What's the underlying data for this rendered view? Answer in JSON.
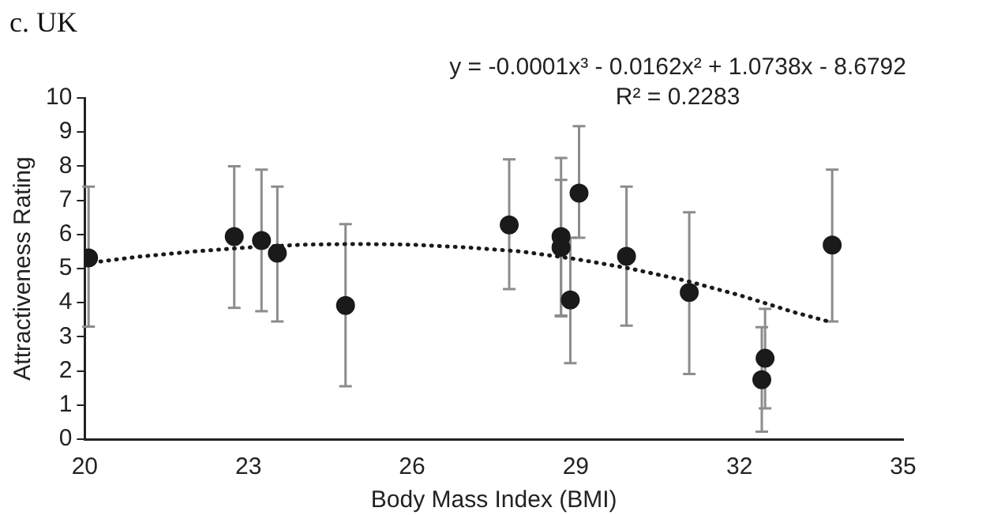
{
  "chart_data": {
    "type": "scatter",
    "title": "c. UK",
    "xlabel": "Body Mass Index (BMI)",
    "ylabel": "Attractiveness Rating",
    "annotations": [
      "y = -0.0001x³ - 0.0162x² + 1.0738x - 8.6792",
      "R² = 0.2283"
    ],
    "xlim": [
      20,
      35
    ],
    "xticks": [
      20,
      23,
      26,
      29,
      32,
      35
    ],
    "ylim": [
      0,
      10
    ],
    "yticks": [
      0,
      1,
      2,
      3,
      4,
      5,
      6,
      7,
      8,
      9,
      10
    ],
    "grid": false,
    "legend": false,
    "series": [
      {
        "type": "scatter",
        "color": "#1a1a1a",
        "marker": "circle",
        "x": [
          20.07,
          22.74,
          23.24,
          23.53,
          24.78,
          27.78,
          28.73,
          28.73,
          29.06,
          28.9,
          29.93,
          31.08,
          32.47,
          32.41,
          33.7
        ],
        "values": [
          5.31,
          5.94,
          5.82,
          5.45,
          3.92,
          6.28,
          5.94,
          5.62,
          7.21,
          4.08,
          5.36,
          4.3,
          2.37,
          1.74,
          5.69
        ],
        "errors": [
          [
            3.3,
            7.4
          ],
          [
            3.85,
            8.0
          ],
          [
            3.75,
            7.9
          ],
          [
            3.45,
            7.4
          ],
          [
            1.55,
            6.3
          ],
          [
            4.4,
            8.2
          ],
          [
            3.62,
            8.24
          ],
          [
            3.6,
            7.6
          ],
          [
            5.9,
            9.17
          ],
          [
            2.23,
            5.9
          ],
          [
            3.33,
            7.4
          ],
          [
            1.91,
            6.65
          ],
          [
            0.9,
            3.82
          ],
          [
            0.22,
            3.28
          ],
          [
            3.45,
            7.9
          ]
        ]
      },
      {
        "type": "line",
        "color": "#1a1a1a",
        "marker": "none",
        "line_style": "dotted",
        "x": [
          20,
          21,
          22,
          23,
          24,
          25,
          26,
          27,
          28,
          29,
          30,
          31,
          32,
          33,
          33.7
        ],
        "values": [
          5.15,
          5.35,
          5.5,
          5.62,
          5.7,
          5.72,
          5.7,
          5.62,
          5.5,
          5.28,
          5.0,
          4.65,
          4.22,
          3.72,
          3.42
        ]
      }
    ]
  }
}
